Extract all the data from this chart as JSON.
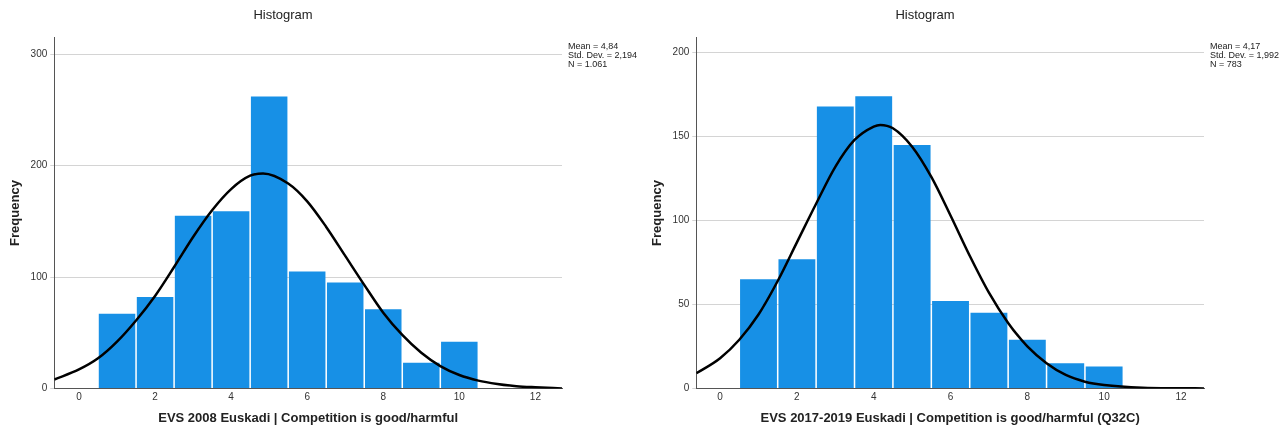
{
  "chart_data": [
    {
      "type": "histogram",
      "title": "Histogram",
      "xlabel": "EVS 2008 Euskadi | Competition is good/harmful",
      "ylabel": "Frequency",
      "bins": [
        0.5,
        1.5,
        2.5,
        3.5,
        4.5,
        5.5,
        6.5,
        7.5,
        8.5,
        9.5,
        10.5
      ],
      "values": [
        67,
        82,
        155,
        159,
        262,
        105,
        95,
        71,
        23,
        42
      ],
      "color": "#1790e6",
      "series": [
        {
          "type": "line",
          "color": "#000000",
          "x": [
            -0.65,
            0,
            0.5,
            1,
            1.5,
            2,
            2.5,
            3,
            3.5,
            4,
            4.5,
            4.84,
            5.5,
            6,
            6.5,
            7,
            7.5,
            8,
            8.5,
            9,
            9.5,
            10,
            10.5,
            11,
            11.5,
            12,
            12.7
          ],
          "values": [
            8,
            17,
            27,
            42,
            61,
            83,
            109,
            136,
            160,
            179,
            191,
            193,
            184,
            168,
            145,
            119,
            93,
            68,
            48,
            32,
            20,
            12,
            7,
            4,
            2,
            1,
            0
          ]
        }
      ],
      "xlim": [
        -0.65,
        12.7
      ],
      "xticks": [
        0,
        2,
        4,
        6,
        8,
        10,
        12
      ],
      "ylim": [
        0,
        315
      ],
      "yticks": [
        0,
        100,
        200,
        300
      ],
      "grid": "y",
      "legend": false,
      "marker": "none",
      "line_style": "solid",
      "annotations": [
        "Mean = 4,84",
        "Std. Dev. = 2,194",
        "N = 1.061"
      ]
    },
    {
      "type": "histogram",
      "title": "Histogram",
      "xlabel": "EVS 2017-2019 Euskadi | Competition is good/harmful (Q32C)",
      "ylabel": "Frequency",
      "bins": [
        0.5,
        1.5,
        2.5,
        3.5,
        4.5,
        5.5,
        6.5,
        7.5,
        8.5,
        9.5,
        10.5
      ],
      "values": [
        65,
        77,
        168,
        174,
        145,
        52,
        45,
        29,
        15,
        13
      ],
      "color": "#1790e6",
      "series": [
        {
          "type": "line",
          "color": "#000000",
          "x": [
            -0.62,
            0,
            0.5,
            1,
            1.5,
            2,
            2.5,
            3,
            3.5,
            4,
            4.17,
            4.5,
            5,
            5.5,
            6,
            6.5,
            7,
            7.5,
            8,
            8.5,
            9,
            9.5,
            10,
            11,
            12,
            12.6
          ],
          "values": [
            9,
            18,
            29,
            44,
            64,
            87,
            110,
            132,
            148,
            156,
            157,
            155,
            144,
            126,
            103,
            79,
            57,
            39,
            25,
            15,
            8,
            4,
            2,
            0.4,
            0.1,
            0
          ]
        }
      ],
      "xlim": [
        -0.62,
        12.6
      ],
      "xticks": [
        0,
        2,
        4,
        6,
        8,
        10,
        12
      ],
      "ylim": [
        0,
        209
      ],
      "yticks": [
        0,
        50,
        100,
        150,
        200
      ],
      "grid": "y",
      "legend": false,
      "marker": "none",
      "line_style": "solid",
      "annotations": [
        "Mean = 4,17",
        "Std. Dev. = 1,992",
        "N = 783"
      ]
    }
  ]
}
